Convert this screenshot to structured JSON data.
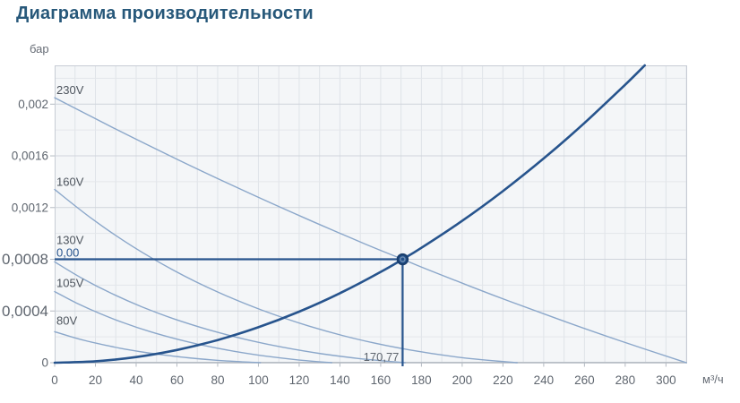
{
  "title": "Диаграмма производительности",
  "colors": {
    "accent_navy": "#27548d",
    "marker_fill": "#24528b",
    "marker_stroke": "#1a3e6d",
    "fan_curve": "#8ba7ca",
    "grid_minor": "#e3e6ea",
    "grid_major": "#cfd4db",
    "grid_vertical": "#dfe3e8",
    "border": "#c7ccd4",
    "axis": "#b4bac2",
    "tick_text": "#5f666f",
    "curve_label_text": "#4e555e",
    "plot_bg": "#f4f6f8",
    "title_text": "#27587a"
  },
  "chart_data": {
    "type": "line",
    "title": "Диаграмма производительности",
    "xlabel": "м³/ч",
    "ylabel": "бар",
    "xlim": [
      0,
      310.4
    ],
    "ylim": [
      0,
      0.0023
    ],
    "grid": {
      "x_step": 10,
      "y_minor_step": 0.0002,
      "y_major_step": 0.0004,
      "x_tick_step": 20
    },
    "x_ticks": [
      0,
      20,
      40,
      60,
      80,
      100,
      120,
      140,
      160,
      180,
      200,
      220,
      240,
      260,
      280,
      300
    ],
    "y_ticks": [
      {
        "value": 0,
        "label": "0",
        "large": false
      },
      {
        "value": 0.0004,
        "label": "0,0004",
        "large": true
      },
      {
        "value": 0.0008,
        "label": "0,0008",
        "large": true
      },
      {
        "value": 0.0012,
        "label": "0,0012",
        "large": false
      },
      {
        "value": 0.0016,
        "label": "0,0016",
        "large": false
      },
      {
        "value": 0.002,
        "label": "0,002",
        "large": false
      }
    ],
    "series": [
      {
        "name": "230V",
        "kind": "fan",
        "label_dy": -4,
        "points": [
          [
            0,
            0.00205
          ],
          [
            30.1,
            0.0018063
          ],
          [
            60.4,
            0.0015712
          ],
          [
            90.9,
            0.0013447
          ],
          [
            121.6,
            0.0011268
          ],
          [
            152.5,
            0.0009175
          ],
          [
            170.8,
            0.0008
          ],
          [
            183.6,
            0.0007168
          ],
          [
            214.9,
            0.0005247
          ],
          [
            246.4,
            0.0003412
          ],
          [
            278.1,
            0.0001663
          ],
          [
            310,
            0
          ]
        ]
      },
      {
        "name": "160V",
        "kind": "fan",
        "label_dy": -4,
        "points": [
          [
            0,
            0.00134
          ],
          [
            18.5,
            0.001111
          ],
          [
            37.9,
            0.000903
          ],
          [
            58.2,
            0.0007162
          ],
          [
            79.5,
            0.0005506
          ],
          [
            101.8,
            0.000406
          ],
          [
            124.9,
            0.0002826
          ],
          [
            149,
            0.0001802
          ],
          [
            174.1,
            9.9e-05
          ],
          [
            200.1,
            3.9e-05
          ],
          [
            227,
            0
          ]
        ]
      },
      {
        "name": "130V",
        "kind": "fan",
        "label_dy": -20,
        "points": [
          [
            0,
            0.00078
          ],
          [
            13.4,
            0.0006534
          ],
          [
            27.7,
            0.0005376
          ],
          [
            42.8,
            0.0004326
          ],
          [
            58.7,
            0.0003384
          ],
          [
            75.5,
            0.000255
          ],
          [
            93.1,
            0.0001824
          ],
          [
            111.6,
            0.0001206
          ],
          [
            130.9,
            6.96e-05
          ],
          [
            151,
            2.94e-05
          ],
          [
            172,
            0
          ]
        ]
      },
      {
        "name": "105V",
        "kind": "fan",
        "label_dy": -5,
        "points": [
          [
            0,
            0.00055
          ],
          [
            10.7,
            0.0004617
          ],
          [
            22.1,
            0.0003808
          ],
          [
            34.1,
            0.0003073
          ],
          [
            46.7,
            0.0002412
          ],
          [
            60,
            0.0001825
          ],
          [
            73.9,
            0.0001312
          ],
          [
            88.5,
            8.73e-05
          ],
          [
            103.7,
            5.08e-05
          ],
          [
            119.5,
            2.17e-05
          ],
          [
            136,
            0
          ]
        ]
      },
      {
        "name": "80V",
        "kind": "fan",
        "label_dy": -8,
        "points": [
          [
            0,
            0.00024
          ],
          [
            7.9,
            0.0002016
          ],
          [
            16.2,
            0.0001664
          ],
          [
            25.1,
            0.0001344
          ],
          [
            34.4,
            0.0001056
          ],
          [
            44.3,
            8e-05
          ],
          [
            54.6,
            5.76e-05
          ],
          [
            65.5,
            3.84e-05
          ],
          [
            76.8,
            2.24e-05
          ],
          [
            88.7,
            9.6e-06
          ],
          [
            101,
            0
          ]
        ]
      },
      {
        "name": "system-curve",
        "kind": "system",
        "points": [
          [
            0,
            0
          ],
          [
            20,
            1.1e-05
          ],
          [
            40,
            4.39e-05
          ],
          [
            60,
            9.87e-05
          ],
          [
            80,
            0.0001756
          ],
          [
            100,
            0.0002743
          ],
          [
            120,
            0.000395
          ],
          [
            140,
            0.0005376
          ],
          [
            160,
            0.0007022
          ],
          [
            170.77,
            0.0008
          ],
          [
            180,
            0.0008888
          ],
          [
            200,
            0.0010972
          ],
          [
            220,
            0.0013276
          ],
          [
            240,
            0.00158
          ],
          [
            260,
            0.0018543
          ],
          [
            280,
            0.0021506
          ],
          [
            289.6,
            0.0023
          ]
        ]
      }
    ],
    "operating_point": {
      "x": 170.77,
      "y": 0.0008,
      "x_label": "170,77",
      "y_label": "0,00"
    }
  }
}
